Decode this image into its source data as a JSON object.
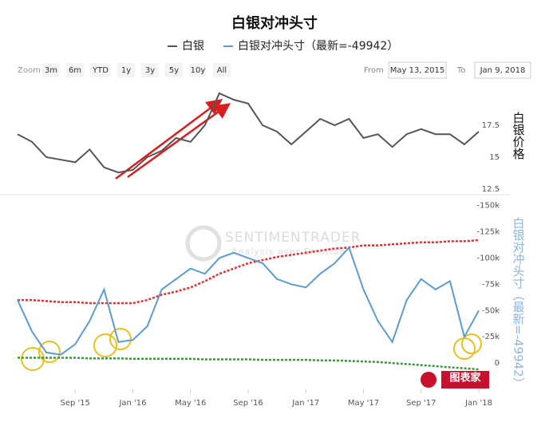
{
  "toolbar": {
    "zoom_label": "Zoom",
    "ranges": [
      "3m",
      "6m",
      "YTD",
      "1y",
      "3y",
      "5y",
      "10y",
      "All"
    ],
    "from_label": "From",
    "from": "May 13, 2015",
    "to_label": "To",
    "to": "Jan 9, 2018"
  },
  "logo": "图表家",
  "chart_data": [
    {
      "type": "line",
      "title": "白银对冲头寸",
      "y_label": "白银价格",
      "x": [
        "2015-05",
        "2015-06",
        "2015-07",
        "2015-08",
        "2015-09",
        "2015-10",
        "2015-11",
        "2015-12",
        "2016-01",
        "2016-02",
        "2016-03",
        "2016-04",
        "2016-05",
        "2016-06",
        "2016-07",
        "2016-08",
        "2016-09",
        "2016-10",
        "2016-11",
        "2016-12",
        "2017-01",
        "2017-02",
        "2017-03",
        "2017-04",
        "2017-05",
        "2017-06",
        "2017-07",
        "2017-08",
        "2017-09",
        "2017-10",
        "2017-11",
        "2017-12",
        "2018-01"
      ],
      "xlim": [
        "2015-05",
        "2018-01"
      ],
      "ylim": [
        12.5,
        20.5
      ],
      "yticks": [
        12.5,
        15,
        17.5
      ],
      "series": [
        {
          "name": "白银",
          "color": "#555555",
          "values": [
            16.8,
            16.2,
            15.0,
            14.8,
            14.6,
            15.6,
            14.2,
            13.8,
            14.0,
            15.0,
            15.5,
            16.5,
            16.2,
            17.5,
            20.0,
            19.5,
            19.2,
            17.5,
            17.0,
            16.0,
            17.0,
            18.0,
            17.5,
            18.0,
            16.5,
            16.8,
            15.8,
            16.8,
            17.2,
            16.8,
            16.8,
            16.0,
            17.0
          ]
        }
      ]
    },
    {
      "type": "line",
      "y_label": "白银对冲头寸（最新=-49942）",
      "x": [
        "2015-05",
        "2015-06",
        "2015-07",
        "2015-08",
        "2015-09",
        "2015-10",
        "2015-11",
        "2015-12",
        "2016-01",
        "2016-02",
        "2016-03",
        "2016-04",
        "2016-05",
        "2016-06",
        "2016-07",
        "2016-08",
        "2016-09",
        "2016-10",
        "2016-11",
        "2016-12",
        "2017-01",
        "2017-02",
        "2017-03",
        "2017-04",
        "2017-05",
        "2017-06",
        "2017-07",
        "2017-08",
        "2017-09",
        "2017-10",
        "2017-11",
        "2017-12",
        "2018-01"
      ],
      "xlim": [
        "2015-05",
        "2018-01"
      ],
      "xticks": [
        {
          "value": "2015-09",
          "label": "Sep '15"
        },
        {
          "value": "2016-01",
          "label": "Jan '16"
        },
        {
          "value": "2016-05",
          "label": "May '16"
        },
        {
          "value": "2016-09",
          "label": "Sep '16"
        },
        {
          "value": "2017-01",
          "label": "Jan '17"
        },
        {
          "value": "2017-05",
          "label": "May '17"
        },
        {
          "value": "2017-09",
          "label": "Sep '17"
        },
        {
          "value": "2018-01",
          "label": "Jan '18"
        }
      ],
      "ylim": [
        25000,
        -155000
      ],
      "yticks": [
        {
          "value": -150000,
          "label": "-150k"
        },
        {
          "value": -125000,
          "label": "-125k"
        },
        {
          "value": -100000,
          "label": "-100k"
        },
        {
          "value": -75000,
          "label": "-75k"
        },
        {
          "value": -50000,
          "label": "-50k"
        },
        {
          "value": -25000,
          "label": "-25k"
        },
        0
      ],
      "watermark": [
        "SENTIMENTRADER",
        "Analysis over Emotion"
      ],
      "series": [
        {
          "name": "白银对冲头寸（最新=-49942）",
          "color": "#5b9bd5",
          "values": [
            -60000,
            -30000,
            -10000,
            -8000,
            -18000,
            -40000,
            -70000,
            -20000,
            -22000,
            -35000,
            -70000,
            -80000,
            -90000,
            -85000,
            -100000,
            -105000,
            -100000,
            -95000,
            -80000,
            -75000,
            -72000,
            -85000,
            -95000,
            -110000,
            -70000,
            -40000,
            -20000,
            -60000,
            -80000,
            -70000,
            -78000,
            -25000,
            -49942
          ]
        },
        {
          "color": "#e03030",
          "style": "dotted",
          "values": [
            -60000,
            -60000,
            -59000,
            -58000,
            -58000,
            -57000,
            -57000,
            -57000,
            -57000,
            -60000,
            -65000,
            -68000,
            -72000,
            -78000,
            -85000,
            -90000,
            -95000,
            -98000,
            -101000,
            -103000,
            -105000,
            -107000,
            -109000,
            -110000,
            -112000,
            -112000,
            -113000,
            -114000,
            -115000,
            -115000,
            -116000,
            -116000,
            -117000
          ]
        },
        {
          "color": "#3a9a3a",
          "style": "dotted",
          "values": [
            -5000,
            -5000,
            -5000,
            -5000,
            -5000,
            -4500,
            -4500,
            -4500,
            -4000,
            -4000,
            -4000,
            -4000,
            -4000,
            -3500,
            -3500,
            -3500,
            -3500,
            -3000,
            -3000,
            -3000,
            -3000,
            -2500,
            -2500,
            -2000,
            -1500,
            -1000,
            0,
            1000,
            2000,
            3000,
            4000,
            5000,
            6000
          ]
        }
      ]
    }
  ]
}
